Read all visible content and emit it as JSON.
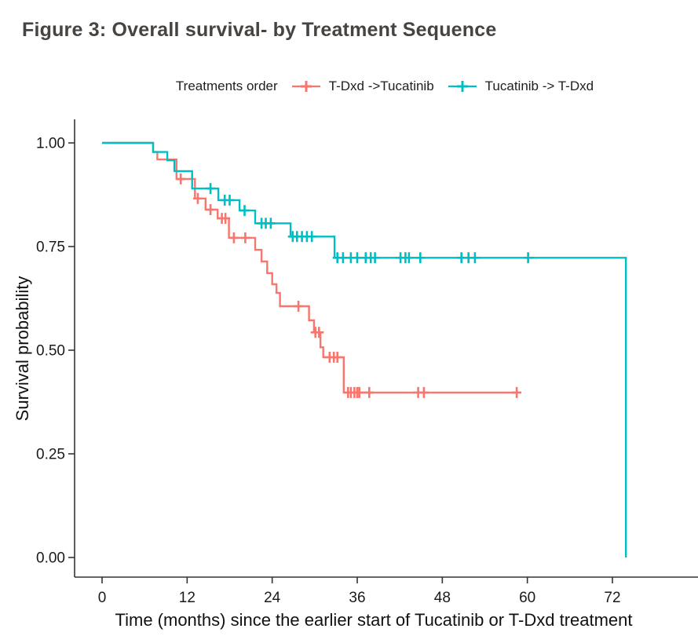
{
  "figure": {
    "title": "Figure 3: Overall survival- by Treatment Sequence"
  },
  "legend": {
    "title": "Treatments order",
    "entries": [
      {
        "label": "T-Dxd ->Tucatinib",
        "color": "#F8766D"
      },
      {
        "label": "Tucatinib -> T-Dxd",
        "color": "#00BFC4"
      }
    ]
  },
  "chart_data": {
    "type": "line",
    "variant": "kaplan_meier_step_curve",
    "title": "Figure 3: Overall survival- by Treatment Sequence",
    "xlabel": "Time (months) since the earlier start of Tucatinib or T-Dxd treatment",
    "ylabel": "Survival probability",
    "xlim": [
      0,
      76
    ],
    "ylim": [
      0.0,
      1.0
    ],
    "grid": false,
    "legend_position": "top",
    "legend_title": "Treatments order",
    "xticks": [
      {
        "v": 0,
        "label": "0"
      },
      {
        "v": 12,
        "label": "12"
      },
      {
        "v": 24,
        "label": "24"
      },
      {
        "v": 36,
        "label": "36"
      },
      {
        "v": 48,
        "label": "48"
      },
      {
        "v": 60,
        "label": "60"
      },
      {
        "v": 72,
        "label": "72"
      }
    ],
    "yticks": [
      {
        "v": 0.0,
        "label": "0.00"
      },
      {
        "v": 0.25,
        "label": "0.25"
      },
      {
        "v": 0.5,
        "label": "0.50"
      },
      {
        "v": 0.75,
        "label": "0.75"
      },
      {
        "v": 1.0,
        "label": "1.00"
      }
    ],
    "series": [
      {
        "name": "T-Dxd ->Tucatinib",
        "color": "#F8766D",
        "end_time": 58.5,
        "steps": [
          [
            0,
            1.0
          ],
          [
            7.2,
            0.978
          ],
          [
            7.8,
            0.96
          ],
          [
            10.5,
            0.913
          ],
          [
            13.1,
            0.866
          ],
          [
            14.6,
            0.839
          ],
          [
            16.3,
            0.818
          ],
          [
            17.9,
            0.771
          ],
          [
            21.6,
            0.742
          ],
          [
            22.5,
            0.714
          ],
          [
            23.3,
            0.686
          ],
          [
            24.0,
            0.659
          ],
          [
            24.6,
            0.638
          ],
          [
            25.1,
            0.606
          ],
          [
            29.2,
            0.572
          ],
          [
            29.9,
            0.543
          ],
          [
            30.8,
            0.507
          ],
          [
            31.2,
            0.483
          ],
          [
            34.1,
            0.398
          ]
        ],
        "censor_marks": [
          [
            11.1,
            0.913
          ],
          [
            13.5,
            0.866
          ],
          [
            15.3,
            0.839
          ],
          [
            16.9,
            0.818
          ],
          [
            17.4,
            0.818
          ],
          [
            18.6,
            0.771
          ],
          [
            20.2,
            0.771
          ],
          [
            27.7,
            0.606
          ],
          [
            30.1,
            0.543
          ],
          [
            30.6,
            0.543
          ],
          [
            32.1,
            0.483
          ],
          [
            32.7,
            0.483
          ],
          [
            33.2,
            0.483
          ],
          [
            34.7,
            0.398
          ],
          [
            35.1,
            0.398
          ],
          [
            35.6,
            0.398
          ],
          [
            36.0,
            0.398
          ],
          [
            36.3,
            0.398
          ],
          [
            37.7,
            0.398
          ],
          [
            44.6,
            0.398
          ],
          [
            45.4,
            0.398
          ],
          [
            58.5,
            0.398
          ]
        ]
      },
      {
        "name": "Tucatinib -> T-Dxd",
        "color": "#00BFC4",
        "end_time": 73.9,
        "steps": [
          [
            0,
            1.0
          ],
          [
            7.2,
            0.978
          ],
          [
            9.2,
            0.958
          ],
          [
            10.2,
            0.932
          ],
          [
            12.7,
            0.89
          ],
          [
            16.4,
            0.862
          ],
          [
            19.4,
            0.837
          ],
          [
            21.6,
            0.806
          ],
          [
            26.6,
            0.774
          ],
          [
            32.8,
            0.723
          ],
          [
            73.9,
            0.0
          ]
        ],
        "censor_marks": [
          [
            15.3,
            0.89
          ],
          [
            17.3,
            0.862
          ],
          [
            18.0,
            0.862
          ],
          [
            20.1,
            0.837
          ],
          [
            22.5,
            0.806
          ],
          [
            23.1,
            0.806
          ],
          [
            23.8,
            0.806
          ],
          [
            26.9,
            0.774
          ],
          [
            27.5,
            0.774
          ],
          [
            28.2,
            0.774
          ],
          [
            28.9,
            0.774
          ],
          [
            29.6,
            0.774
          ],
          [
            33.2,
            0.723
          ],
          [
            34.0,
            0.723
          ],
          [
            35.1,
            0.723
          ],
          [
            36.0,
            0.723
          ],
          [
            37.2,
            0.723
          ],
          [
            37.9,
            0.723
          ],
          [
            38.5,
            0.723
          ],
          [
            42.1,
            0.723
          ],
          [
            42.8,
            0.723
          ],
          [
            43.3,
            0.723
          ],
          [
            44.9,
            0.723
          ],
          [
            50.7,
            0.723
          ],
          [
            51.7,
            0.723
          ],
          [
            52.6,
            0.723
          ],
          [
            60.1,
            0.723
          ]
        ]
      }
    ]
  }
}
